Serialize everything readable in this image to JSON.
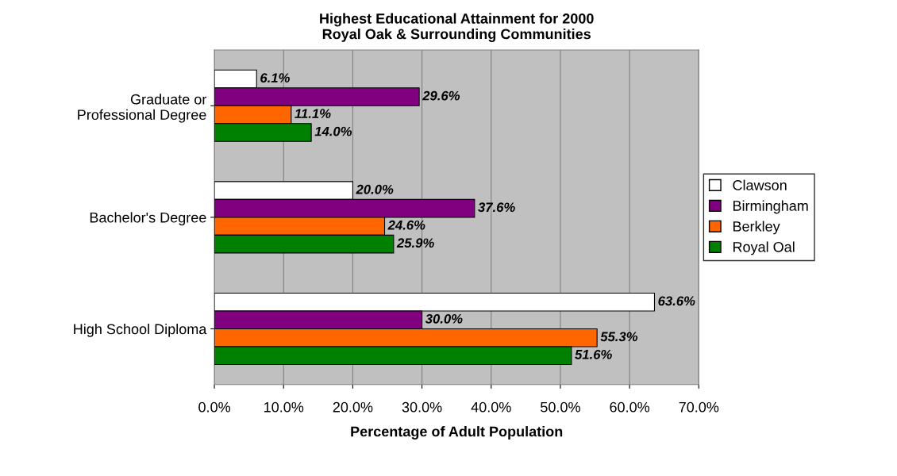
{
  "chart_data": {
    "type": "bar",
    "orientation": "horizontal",
    "title": "Highest Educational Attainment for 2000\nRoyal Oak & Surrounding Communities",
    "xlabel": "Percentage of Adult Population",
    "categories": [
      "Graduate or\nProfessional Degree",
      "Bachelor's Degree",
      "High School Diploma"
    ],
    "series": [
      {
        "name": "Clawson",
        "color": "#ffffff",
        "values": [
          6.1,
          20.0,
          63.6
        ],
        "value_labels": [
          "6.1%",
          "20.0%",
          "63.6%"
        ]
      },
      {
        "name": "Birmingham",
        "color": "#800080",
        "values": [
          29.6,
          37.6,
          30.0
        ],
        "value_labels": [
          "29.6%",
          "37.6%",
          "30.0%"
        ]
      },
      {
        "name": "Berkley",
        "color": "#ff6600",
        "values": [
          11.1,
          24.6,
          55.3
        ],
        "value_labels": [
          "11.1%",
          "24.6%",
          "55.3%"
        ]
      },
      {
        "name": "Royal Oal",
        "color": "#008000",
        "values": [
          14.0,
          25.9,
          51.6
        ],
        "value_labels": [
          "14.0%",
          "25.9%",
          "51.6%"
        ]
      }
    ],
    "xlim": [
      0,
      70
    ],
    "xticks": [
      {
        "value": 0,
        "label": "0.0%"
      },
      {
        "value": 10,
        "label": "10.0%"
      },
      {
        "value": 20,
        "label": "20.0%"
      },
      {
        "value": 30,
        "label": "30.0%"
      },
      {
        "value": 40,
        "label": "40.0%"
      },
      {
        "value": 50,
        "label": "50.0%"
      },
      {
        "value": 60,
        "label": "60.0%"
      },
      {
        "value": 70,
        "label": "70.0%"
      }
    ],
    "grid": "x",
    "legend": "right"
  }
}
